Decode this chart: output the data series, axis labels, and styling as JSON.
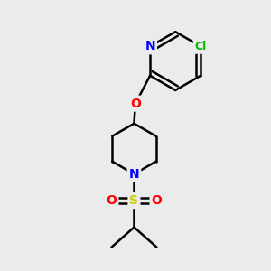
{
  "background_color": "#ebebeb",
  "atom_colors": {
    "C": "#000000",
    "N": "#0000ff",
    "O": "#ff0000",
    "S": "#cccc00",
    "Cl": "#00bb00",
    "H": "#000000"
  },
  "bond_color": "#000000",
  "bond_width": 1.8,
  "figsize": [
    3.0,
    3.0
  ],
  "dpi": 100,
  "xlim": [
    0,
    10
  ],
  "ylim": [
    0,
    10
  ]
}
